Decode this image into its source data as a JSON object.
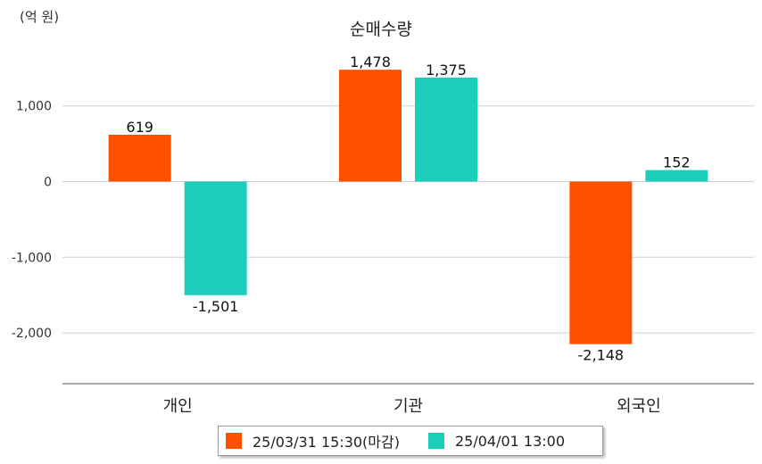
{
  "chart_data": {
    "type": "bar",
    "title": "순매수량",
    "unit_label": "(억 원)",
    "categories": [
      "개인",
      "기관",
      "외국인"
    ],
    "series": [
      {
        "name": "25/03/31 15:30(마감)",
        "color": "#ff5000",
        "values": [
          619,
          1478,
          -2148
        ],
        "labels": [
          "619",
          "1,478",
          "-2,148"
        ]
      },
      {
        "name": "25/04/01 13:00",
        "color": "#1ecebc",
        "values": [
          -1501,
          1375,
          152
        ],
        "labels": [
          "-1,501",
          "1,375",
          "152"
        ]
      }
    ],
    "yticks": [
      1000,
      0,
      -1000,
      -2000
    ],
    "ytick_labels": [
      "1,000",
      "0",
      "-1,000",
      "-2,000"
    ],
    "ylim": [
      -2700,
      1850
    ],
    "grid": true,
    "legend": "bottom"
  }
}
